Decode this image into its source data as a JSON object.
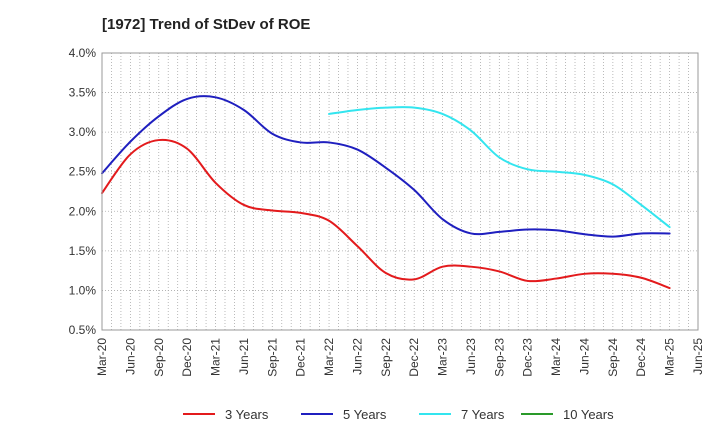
{
  "chart_data": {
    "type": "line",
    "title": "[1972]  Trend of StDev of ROE",
    "xlabel": "",
    "ylabel": "",
    "x_ticks": [
      "Mar-20",
      "Jun-20",
      "Sep-20",
      "Dec-20",
      "Mar-21",
      "Jun-21",
      "Sep-21",
      "Dec-21",
      "Mar-22",
      "Jun-22",
      "Sep-22",
      "Dec-22",
      "Mar-23",
      "Jun-23",
      "Sep-23",
      "Dec-23",
      "Mar-24",
      "Jun-24",
      "Sep-24",
      "Dec-24",
      "Mar-25",
      "Jun-25"
    ],
    "y_ticks": [
      "0.5%",
      "1.0%",
      "1.5%",
      "2.0%",
      "2.5%",
      "3.0%",
      "3.5%",
      "4.0%"
    ],
    "ylim": [
      0.5,
      4.0
    ],
    "grid": true,
    "legend_position": "bottom",
    "series": [
      {
        "name": "3 Years",
        "color": "#e31a1c",
        "x": [
          "Mar-20",
          "Jun-20",
          "Sep-20",
          "Dec-20",
          "Mar-21",
          "Jun-21",
          "Sep-21",
          "Dec-21",
          "Mar-22",
          "Jun-22",
          "Sep-22",
          "Dec-22",
          "Mar-23",
          "Jun-23",
          "Sep-23",
          "Dec-23",
          "Mar-24",
          "Jun-24",
          "Sep-24",
          "Dec-24",
          "Mar-25"
        ],
        "values": [
          2.23,
          2.72,
          2.9,
          2.79,
          2.36,
          2.08,
          2.01,
          1.98,
          1.88,
          1.56,
          1.22,
          1.14,
          1.3,
          1.3,
          1.24,
          1.12,
          1.15,
          1.21,
          1.21,
          1.16,
          1.03
        ]
      },
      {
        "name": "5 Years",
        "color": "#1f1fbf",
        "x": [
          "Mar-20",
          "Jun-20",
          "Sep-20",
          "Dec-20",
          "Mar-21",
          "Jun-21",
          "Sep-21",
          "Dec-21",
          "Mar-22",
          "Jun-22",
          "Sep-22",
          "Dec-22",
          "Mar-23",
          "Jun-23",
          "Sep-23",
          "Dec-23",
          "Mar-24",
          "Jun-24",
          "Sep-24",
          "Dec-24",
          "Mar-25"
        ],
        "values": [
          2.48,
          2.88,
          3.2,
          3.42,
          3.44,
          3.28,
          2.98,
          2.87,
          2.87,
          2.78,
          2.55,
          2.27,
          1.9,
          1.72,
          1.74,
          1.77,
          1.76,
          1.71,
          1.68,
          1.72,
          1.72
        ]
      },
      {
        "name": "7 Years",
        "color": "#33e5ef",
        "x": [
          "Mar-22",
          "Jun-22",
          "Sep-22",
          "Dec-22",
          "Mar-23",
          "Jun-23",
          "Sep-23",
          "Dec-23",
          "Mar-24",
          "Jun-24",
          "Sep-24",
          "Dec-24",
          "Mar-25"
        ],
        "values": [
          3.23,
          3.28,
          3.31,
          3.31,
          3.23,
          3.02,
          2.68,
          2.53,
          2.5,
          2.46,
          2.34,
          2.08,
          1.8
        ]
      },
      {
        "name": "10 Years",
        "color": "#2a9a2a",
        "x": [],
        "values": []
      }
    ]
  }
}
